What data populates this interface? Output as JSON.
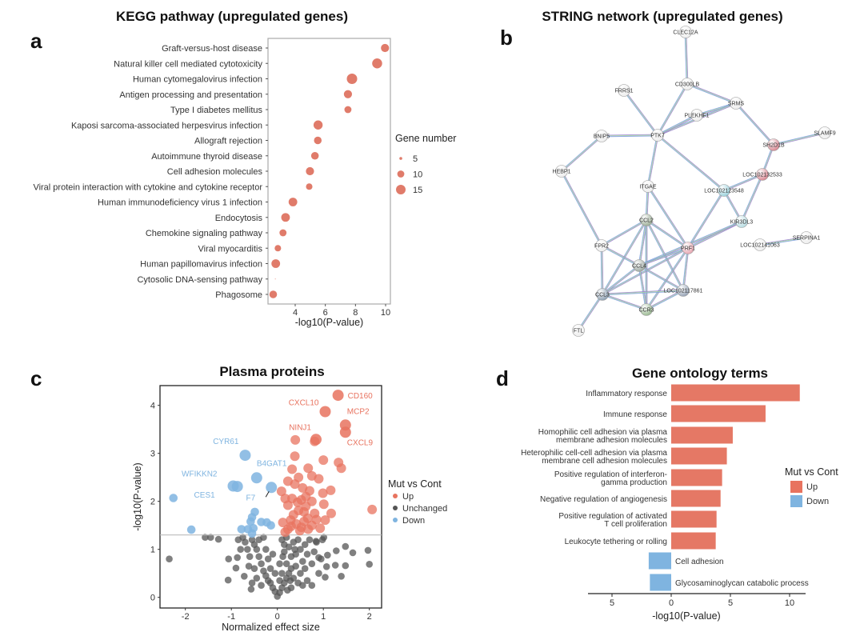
{
  "panels": {
    "a": {
      "letter": "a",
      "title": "KEGG pathway (upregulated genes)"
    },
    "b": {
      "letter": "b",
      "title": "STRING network (upregulated genes)"
    },
    "c": {
      "letter": "c",
      "title": "Plasma proteins"
    },
    "d": {
      "letter": "d",
      "title": "Gene ontology terms"
    }
  },
  "chart_data": [
    {
      "type": "scatter",
      "subtype": "dot-plot",
      "title": "KEGG pathway (upregulated genes)",
      "xlabel": "-log10(P-value)",
      "xlim": [
        2.2,
        10.2
      ],
      "xticks": [
        4,
        6,
        8,
        10
      ],
      "color": "#e07b6a",
      "legend": {
        "title": "Gene number",
        "sizes": [
          5,
          10,
          15
        ],
        "position": "right"
      },
      "categories": [
        "Graft-versus-host disease",
        "Natural killer cell mediated cytotoxicity",
        "Human cytomegalovirus infection",
        "Antigen processing and presentation",
        "Type I diabetes mellitus",
        "Kaposi sarcoma-associated herpesvirus infection",
        "Allograft rejection",
        "Autoimmune thyroid disease",
        "Cell adhesion molecules",
        "Viral protein interaction with cytokine and cytokine receptor",
        "Human immunodeficiency virus 1 infection",
        "Endocytosis",
        "Chemokine signaling pathway",
        "Viral myocarditis",
        "Human papillomavirus infection",
        "Cytosolic DNA-sensing pathway",
        "Phagosome"
      ],
      "x": [
        9.96,
        9.44,
        7.77,
        7.5,
        7.5,
        5.52,
        5.5,
        5.31,
        4.98,
        4.93,
        3.85,
        3.36,
        3.19,
        2.85,
        2.71,
        2.68,
        2.54
      ],
      "gene_number": [
        12,
        16,
        17,
        12,
        10,
        14,
        11,
        11,
        12,
        9,
        13,
        13,
        10,
        9,
        13,
        4,
        11
      ]
    },
    {
      "type": "network",
      "title": "STRING network (upregulated genes)",
      "nodes": [
        "CLEC12A",
        "CD300LB",
        "FRRS1",
        "SRMS",
        "PLEKHF1",
        "PTK7",
        "BNIP5",
        "SLAMF9",
        "SH2D1B",
        "HEBP1",
        "LOC102132533",
        "ITGAE",
        "LOC102123548",
        "CCL2",
        "KIR3DL3",
        "FPR2",
        "PRF1",
        "LOC102141063",
        "SERPINA1",
        "CCL4",
        "LOC102117861",
        "CCL3",
        "CCR3",
        "FTL"
      ],
      "node_colors": {
        "SH2D1B": "#d98a94",
        "LOC102132533": "#d98a94",
        "LOC102123548": "#9fd3de",
        "KIR3DL3": "#b9dde3",
        "PRF1": "#e7a9b3",
        "CCL2": "#9fb09a",
        "CCL4": "#9fa9a3",
        "CCL3": "#8fa1b3",
        "CCR3": "#9dbb95",
        "LOC102117861": "#9aa6b8",
        "default": "#eeeeee"
      },
      "edges": [
        [
          "CLEC12A",
          "CD300LB"
        ],
        [
          "CD300LB",
          "SRMS"
        ],
        [
          "CD300LB",
          "PTK7"
        ],
        [
          "FRRS1",
          "PTK7"
        ],
        [
          "SRMS",
          "PLEKHF1"
        ],
        [
          "SRMS",
          "PTK7"
        ],
        [
          "PLEKHF1",
          "PTK7"
        ],
        [
          "SRMS",
          "SH2D1B"
        ],
        [
          "SLAMF9",
          "SH2D1B"
        ],
        [
          "BNIP5",
          "PTK7"
        ],
        [
          "BNIP5",
          "HEBP1"
        ],
        [
          "HEBP1",
          "FPR2"
        ],
        [
          "PTK7",
          "ITGAE"
        ],
        [
          "PTK7",
          "LOC102123548"
        ],
        [
          "SH2D1B",
          "LOC102132533"
        ],
        [
          "LOC102132533",
          "LOC102123548"
        ],
        [
          "LOC102132533",
          "KIR3DL3"
        ],
        [
          "LOC102123548",
          "KIR3DL3"
        ],
        [
          "LOC102123548",
          "PRF1"
        ],
        [
          "KIR3DL3",
          "PRF1"
        ],
        [
          "KIR3DL3",
          "CCL4"
        ],
        [
          "ITGAE",
          "CCL2"
        ],
        [
          "ITGAE",
          "PRF1"
        ],
        [
          "LOC102141063",
          "SERPINA1"
        ],
        [
          "CCL2",
          "FPR2"
        ],
        [
          "CCL2",
          "PRF1"
        ],
        [
          "CCL2",
          "CCL4"
        ],
        [
          "CCL2",
          "CCL3"
        ],
        [
          "CCL2",
          "CCR3"
        ],
        [
          "CCL2",
          "LOC102117861"
        ],
        [
          "FPR2",
          "CCL4"
        ],
        [
          "FPR2",
          "CCL3"
        ],
        [
          "PRF1",
          "CCL4"
        ],
        [
          "PRF1",
          "CCL3"
        ],
        [
          "PRF1",
          "CCR3"
        ],
        [
          "PRF1",
          "LOC102117861"
        ],
        [
          "CCL4",
          "CCL3"
        ],
        [
          "CCL4",
          "CCR3"
        ],
        [
          "CCL4",
          "LOC102117861"
        ],
        [
          "CCL3",
          "CCR3"
        ],
        [
          "CCL3",
          "LOC102117861"
        ],
        [
          "CCR3",
          "LOC102117861"
        ],
        [
          "CCL3",
          "FTL"
        ]
      ]
    },
    {
      "type": "scatter",
      "subtype": "volcano",
      "title": "Plasma proteins",
      "xlabel": "Normalized effect size",
      "ylabel": "-log10(P-value)",
      "xlim": [
        -2.6,
        2.25
      ],
      "ylim": [
        -0.08,
        4.4
      ],
      "xticks": [
        -2,
        -1,
        0,
        1,
        2
      ],
      "yticks": [
        0,
        1,
        2,
        3,
        4
      ],
      "threshold_y": 1.3,
      "legend": {
        "title": "Mut vs Cont",
        "position": "right",
        "entries": [
          {
            "label": "Up",
            "color": "#e8735f"
          },
          {
            "label": "Unchanged",
            "color": "#555555"
          },
          {
            "label": "Down",
            "color": "#7fb4e0"
          }
        ]
      },
      "labeled": [
        {
          "label": "CD160",
          "group": "Up",
          "x": 1.32,
          "y": 4.21
        },
        {
          "label": "CXCL10",
          "group": "Up",
          "x": 1.04,
          "y": 3.87
        },
        {
          "label": "MCP2",
          "group": "Up",
          "x": 1.48,
          "y": 3.59
        },
        {
          "label": "CXCL9",
          "group": "Up",
          "x": 1.48,
          "y": 3.44
        },
        {
          "label": "NINJ1",
          "group": "Up",
          "x": 0.84,
          "y": 3.29
        },
        {
          "label": "CYR61",
          "group": "Down",
          "x": -0.7,
          "y": 2.96
        },
        {
          "label": "B4GAT1",
          "group": "Down",
          "x": -0.45,
          "y": 2.49
        },
        {
          "label": "WFIKKN2",
          "group": "Down",
          "x": -0.96,
          "y": 2.32
        },
        {
          "label": "CES1",
          "group": "Down",
          "x": -0.87,
          "y": 2.31
        },
        {
          "label": "F7",
          "group": "Down",
          "x": -0.13,
          "y": 2.29
        }
      ],
      "up": [
        [
          0.39,
          3.28
        ],
        [
          0.81,
          3.25
        ],
        [
          0.38,
          2.94
        ],
        [
          1.0,
          2.86
        ],
        [
          1.33,
          2.81
        ],
        [
          1.39,
          2.69
        ],
        [
          0.32,
          2.67
        ],
        [
          0.67,
          2.69
        ],
        [
          0.75,
          2.53
        ],
        [
          0.9,
          2.47
        ],
        [
          0.46,
          2.5
        ],
        [
          0.23,
          2.42
        ],
        [
          0.38,
          2.36
        ],
        [
          0.55,
          2.28
        ],
        [
          0.7,
          2.22
        ],
        [
          0.99,
          2.17
        ],
        [
          1.16,
          2.23
        ],
        [
          0.09,
          2.21
        ],
        [
          0.17,
          2.06
        ],
        [
          0.32,
          2.06
        ],
        [
          0.52,
          2.03
        ],
        [
          0.75,
          2.0
        ],
        [
          1.01,
          1.94
        ],
        [
          0.23,
          1.92
        ],
        [
          2.06,
          1.83
        ],
        [
          1.17,
          1.75
        ],
        [
          0.46,
          1.81
        ],
        [
          0.81,
          1.75
        ],
        [
          0.12,
          1.56
        ],
        [
          0.29,
          1.61
        ],
        [
          0.41,
          1.53
        ],
        [
          0.58,
          1.58
        ],
        [
          0.75,
          1.5
        ],
        [
          0.93,
          1.44
        ],
        [
          1.04,
          1.61
        ],
        [
          0.23,
          1.42
        ],
        [
          0.49,
          1.39
        ],
        [
          0.67,
          1.42
        ],
        [
          0.35,
          1.72
        ],
        [
          0.58,
          1.78
        ],
        [
          0.17,
          1.36
        ],
        [
          0.62,
          2.1
        ],
        [
          0.44,
          1.98
        ],
        [
          0.66,
          1.65
        ],
        [
          0.52,
          1.46
        ],
        [
          0.3,
          1.48
        ],
        [
          0.85,
          1.62
        ],
        [
          0.62,
          1.9
        ]
      ],
      "down": [
        [
          -2.26,
          2.07
        ],
        [
          -1.87,
          1.41
        ],
        [
          -0.49,
          1.78
        ],
        [
          -0.55,
          1.67
        ],
        [
          -0.58,
          1.58
        ],
        [
          -0.35,
          1.57
        ],
        [
          -0.23,
          1.56
        ],
        [
          -0.14,
          1.5
        ],
        [
          -0.78,
          1.42
        ],
        [
          -0.64,
          1.42
        ],
        [
          -0.52,
          1.44
        ],
        [
          -0.55,
          1.33
        ]
      ],
      "unchanged": [
        [
          -2.35,
          0.8
        ],
        [
          -1.57,
          1.25
        ],
        [
          -1.45,
          1.25
        ],
        [
          -1.28,
          1.21
        ],
        [
          -1.06,
          0.8
        ],
        [
          -0.87,
          0.83
        ],
        [
          -0.9,
          0.61
        ],
        [
          -1.07,
          0.36
        ],
        [
          -0.72,
          0.44
        ],
        [
          -0.57,
          0.17
        ],
        [
          -0.75,
          1.25
        ],
        [
          1.97,
          0.98
        ],
        [
          2.0,
          0.69
        ],
        [
          1.64,
          0.93
        ],
        [
          1.48,
          1.06
        ],
        [
          1.28,
          0.97
        ],
        [
          1.09,
          0.88
        ],
        [
          0.9,
          0.83
        ],
        [
          1.07,
          0.64
        ],
        [
          1.48,
          0.66
        ],
        [
          1.26,
          0.67
        ],
        [
          1.04,
          0.42
        ],
        [
          1.39,
          0.44
        ],
        [
          1.01,
          1.25
        ],
        [
          0.84,
          1.17
        ],
        [
          0,
          0.02
        ],
        [
          0.05,
          0.1
        ],
        [
          -0.05,
          0.12
        ],
        [
          0.1,
          0.2
        ],
        [
          -0.1,
          0.2
        ],
        [
          0.15,
          0.3
        ],
        [
          -0.15,
          0.3
        ],
        [
          0.2,
          0.4
        ],
        [
          -0.2,
          0.35
        ],
        [
          0.25,
          0.5
        ],
        [
          -0.25,
          0.45
        ],
        [
          0.3,
          0.6
        ],
        [
          -0.3,
          0.55
        ],
        [
          0.1,
          0.5
        ],
        [
          0.2,
          0.7
        ],
        [
          0.3,
          0.85
        ],
        [
          0.4,
          0.9
        ],
        [
          0.15,
          0.95
        ],
        [
          0.25,
          1.05
        ],
        [
          0.35,
          1.15
        ],
        [
          0.45,
          1.2
        ],
        [
          0.1,
          1.2
        ],
        [
          0.2,
          1.25
        ],
        [
          0.5,
          1.0
        ],
        [
          0.55,
          0.75
        ],
        [
          0.6,
          1.1
        ],
        [
          0.65,
          0.9
        ],
        [
          0.7,
          1.2
        ],
        [
          0.4,
          0.65
        ],
        [
          0.35,
          0.4
        ],
        [
          0.5,
          0.5
        ],
        [
          0.6,
          0.6
        ],
        [
          0.75,
          0.7
        ],
        [
          0.8,
          0.95
        ],
        [
          0.85,
          1.15
        ],
        [
          0.9,
          0.5
        ],
        [
          0.45,
          0.3
        ],
        [
          -0.35,
          0.7
        ],
        [
          -0.4,
          0.85
        ],
        [
          -0.45,
          1.0
        ],
        [
          -0.5,
          1.1
        ],
        [
          -0.55,
          1.2
        ],
        [
          -0.3,
          1.25
        ],
        [
          -0.4,
          1.2
        ],
        [
          -0.2,
          0.8
        ],
        [
          -0.35,
          0.25
        ],
        [
          -0.5,
          0.6
        ],
        [
          -0.6,
          0.85
        ],
        [
          -0.65,
          1.0
        ],
        [
          -0.7,
          1.15
        ],
        [
          -0.45,
          0.4
        ],
        [
          -0.25,
          1.0
        ],
        [
          -0.15,
          0.6
        ],
        [
          0.05,
          0.35
        ],
        [
          0.05,
          0.7
        ],
        [
          0.15,
          1.1
        ],
        [
          -0.05,
          0.5
        ],
        [
          0.3,
          0.2
        ],
        [
          0.55,
          0.25
        ],
        [
          0.65,
          0.35
        ],
        [
          0.75,
          0.25
        ],
        [
          -0.55,
          0.3
        ],
        [
          -0.62,
          0.65
        ],
        [
          0.95,
          0.8
        ],
        [
          0.98,
          1.2
        ],
        [
          -0.8,
          1.0
        ],
        [
          -0.85,
          1.2
        ],
        [
          0.12,
          0.85
        ],
        [
          0.22,
          0.15
        ],
        [
          -0.1,
          0.9
        ],
        [
          0.38,
          1.0
        ],
        [
          0.28,
          0.35
        ]
      ]
    },
    {
      "type": "bar",
      "orientation": "horizontal",
      "title": "Gene ontology terms",
      "xlabel": "-log10(P-value)",
      "xticks": [
        {
          "value": -5,
          "label": "5"
        },
        {
          "value": 0,
          "label": "0"
        },
        {
          "value": 5,
          "label": "5"
        },
        {
          "value": 10,
          "label": "10"
        }
      ],
      "xlim": [
        -7,
        11.5
      ],
      "legend": {
        "title": "Mut vs Cont",
        "position": "right",
        "entries": [
          {
            "label": "Up",
            "color": "#e8735f"
          },
          {
            "label": "Down",
            "color": "#7fb4e0"
          }
        ]
      },
      "bars": [
        {
          "label": [
            "Inflammatory response"
          ],
          "group": "Up",
          "value": 10.86
        },
        {
          "label": [
            "Immune response"
          ],
          "group": "Up",
          "value": 7.97
        },
        {
          "label": [
            "Homophilic cell adhesion via plasma",
            "membrane adhesion molecules"
          ],
          "group": "Up",
          "value": 5.2
        },
        {
          "label": [
            "Heterophilic cell-cell adhesion via plasma",
            "membrane cell adhesion molecules"
          ],
          "group": "Up",
          "value": 4.7
        },
        {
          "label": [
            "Positive regulation of interferon-",
            "gamma production"
          ],
          "group": "Up",
          "value": 4.3
        },
        {
          "label": [
            "Negative regulation of angiogenesis"
          ],
          "group": "Up",
          "value": 4.17
        },
        {
          "label": [
            "Positive regulation of activated",
            "T cell proliferation"
          ],
          "group": "Up",
          "value": 3.83
        },
        {
          "label": [
            "Leukocyte tethering or rolling"
          ],
          "group": "Up",
          "value": 3.76
        },
        {
          "label": [
            "Cell adhesion"
          ],
          "group": "Down",
          "value": 1.9
        },
        {
          "label": [
            "Glycosaminoglycan catabolic process"
          ],
          "group": "Down",
          "value": 1.8
        }
      ]
    }
  ]
}
